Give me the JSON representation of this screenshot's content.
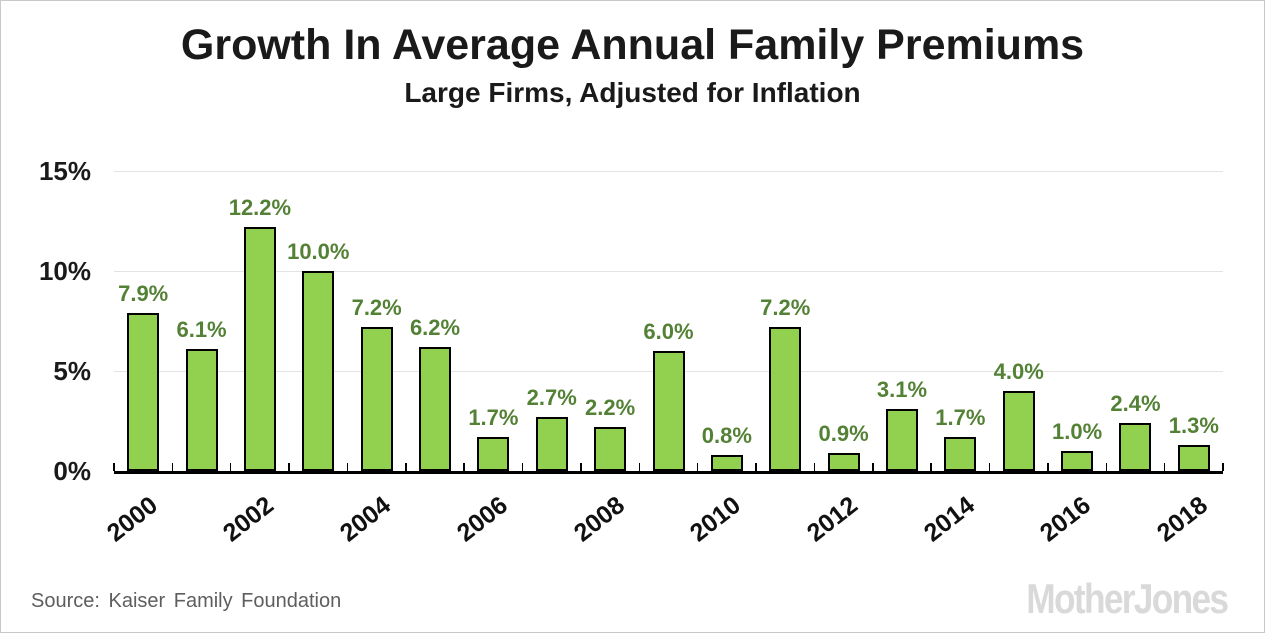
{
  "header": {
    "title": "Growth In Average Annual Family Premiums",
    "subtitle": "Large Firms, Adjusted for Inflation"
  },
  "chart_data": {
    "type": "bar",
    "title": "Growth In Average Annual Family Premiums",
    "subtitle": "Large Firms, Adjusted for Inflation",
    "x": [
      2000,
      2001,
      2002,
      2003,
      2004,
      2005,
      2006,
      2007,
      2008,
      2009,
      2010,
      2011,
      2012,
      2013,
      2014,
      2015,
      2016,
      2017,
      2018
    ],
    "values": [
      7.9,
      6.1,
      12.2,
      10.0,
      7.2,
      6.2,
      1.7,
      2.7,
      2.2,
      6.0,
      0.8,
      7.2,
      0.9,
      3.1,
      1.7,
      4.0,
      1.0,
      2.4,
      1.3
    ],
    "value_labels": [
      "7.9%",
      "6.1%",
      "12.2%",
      "10.0%",
      "7.2%",
      "6.2%",
      "1.7%",
      "2.7%",
      "2.2%",
      "6.0%",
      "0.8%",
      "7.2%",
      "0.9%",
      "3.1%",
      "1.7%",
      "4.0%",
      "1.0%",
      "2.4%",
      "1.3%"
    ],
    "x_tick_labels": [
      "2000",
      "2002",
      "2004",
      "2006",
      "2008",
      "2010",
      "2012",
      "2014",
      "2016",
      "2018"
    ],
    "y_ticks": [
      0,
      5,
      10,
      15
    ],
    "y_tick_labels": [
      "0%",
      "5%",
      "10%",
      "15%"
    ],
    "ylim": [
      0,
      15
    ],
    "grid": "horizontal",
    "legend": "none",
    "bar_fill_color": "#92d050",
    "bar_border_color": "#000000",
    "value_label_color": "#538135",
    "gridline_color": "#e3e3e3"
  },
  "footer": {
    "source": "Source: Kaiser Family Foundation",
    "logo": "MotherJones"
  }
}
